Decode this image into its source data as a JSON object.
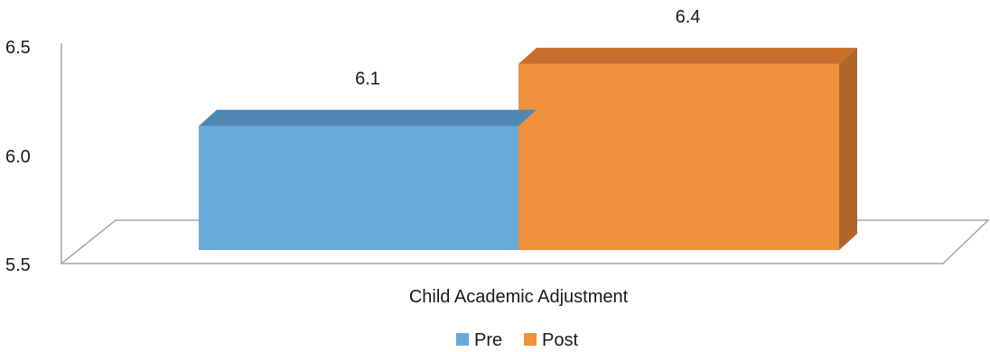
{
  "chart_data": {
    "type": "bar",
    "style": "3d-clustered",
    "categories": [
      "Child Academic Adjustment"
    ],
    "series": [
      {
        "name": "Pre",
        "values": [
          6.1
        ],
        "color": "#6aaad8",
        "top_color": "#4f88b4"
      },
      {
        "name": "Post",
        "values": [
          6.4
        ],
        "color": "#f0913c",
        "top_color": "#c96f2c",
        "side_color": "#b0662a"
      }
    ],
    "data_labels": [
      "6.1",
      "6.4"
    ],
    "ylim": [
      5.5,
      6.5
    ],
    "yticks": [
      "5.5",
      "6.0",
      "6.5"
    ],
    "title": "",
    "xlabel": "",
    "ylabel": "",
    "grid": false,
    "legend_position": "bottom"
  }
}
